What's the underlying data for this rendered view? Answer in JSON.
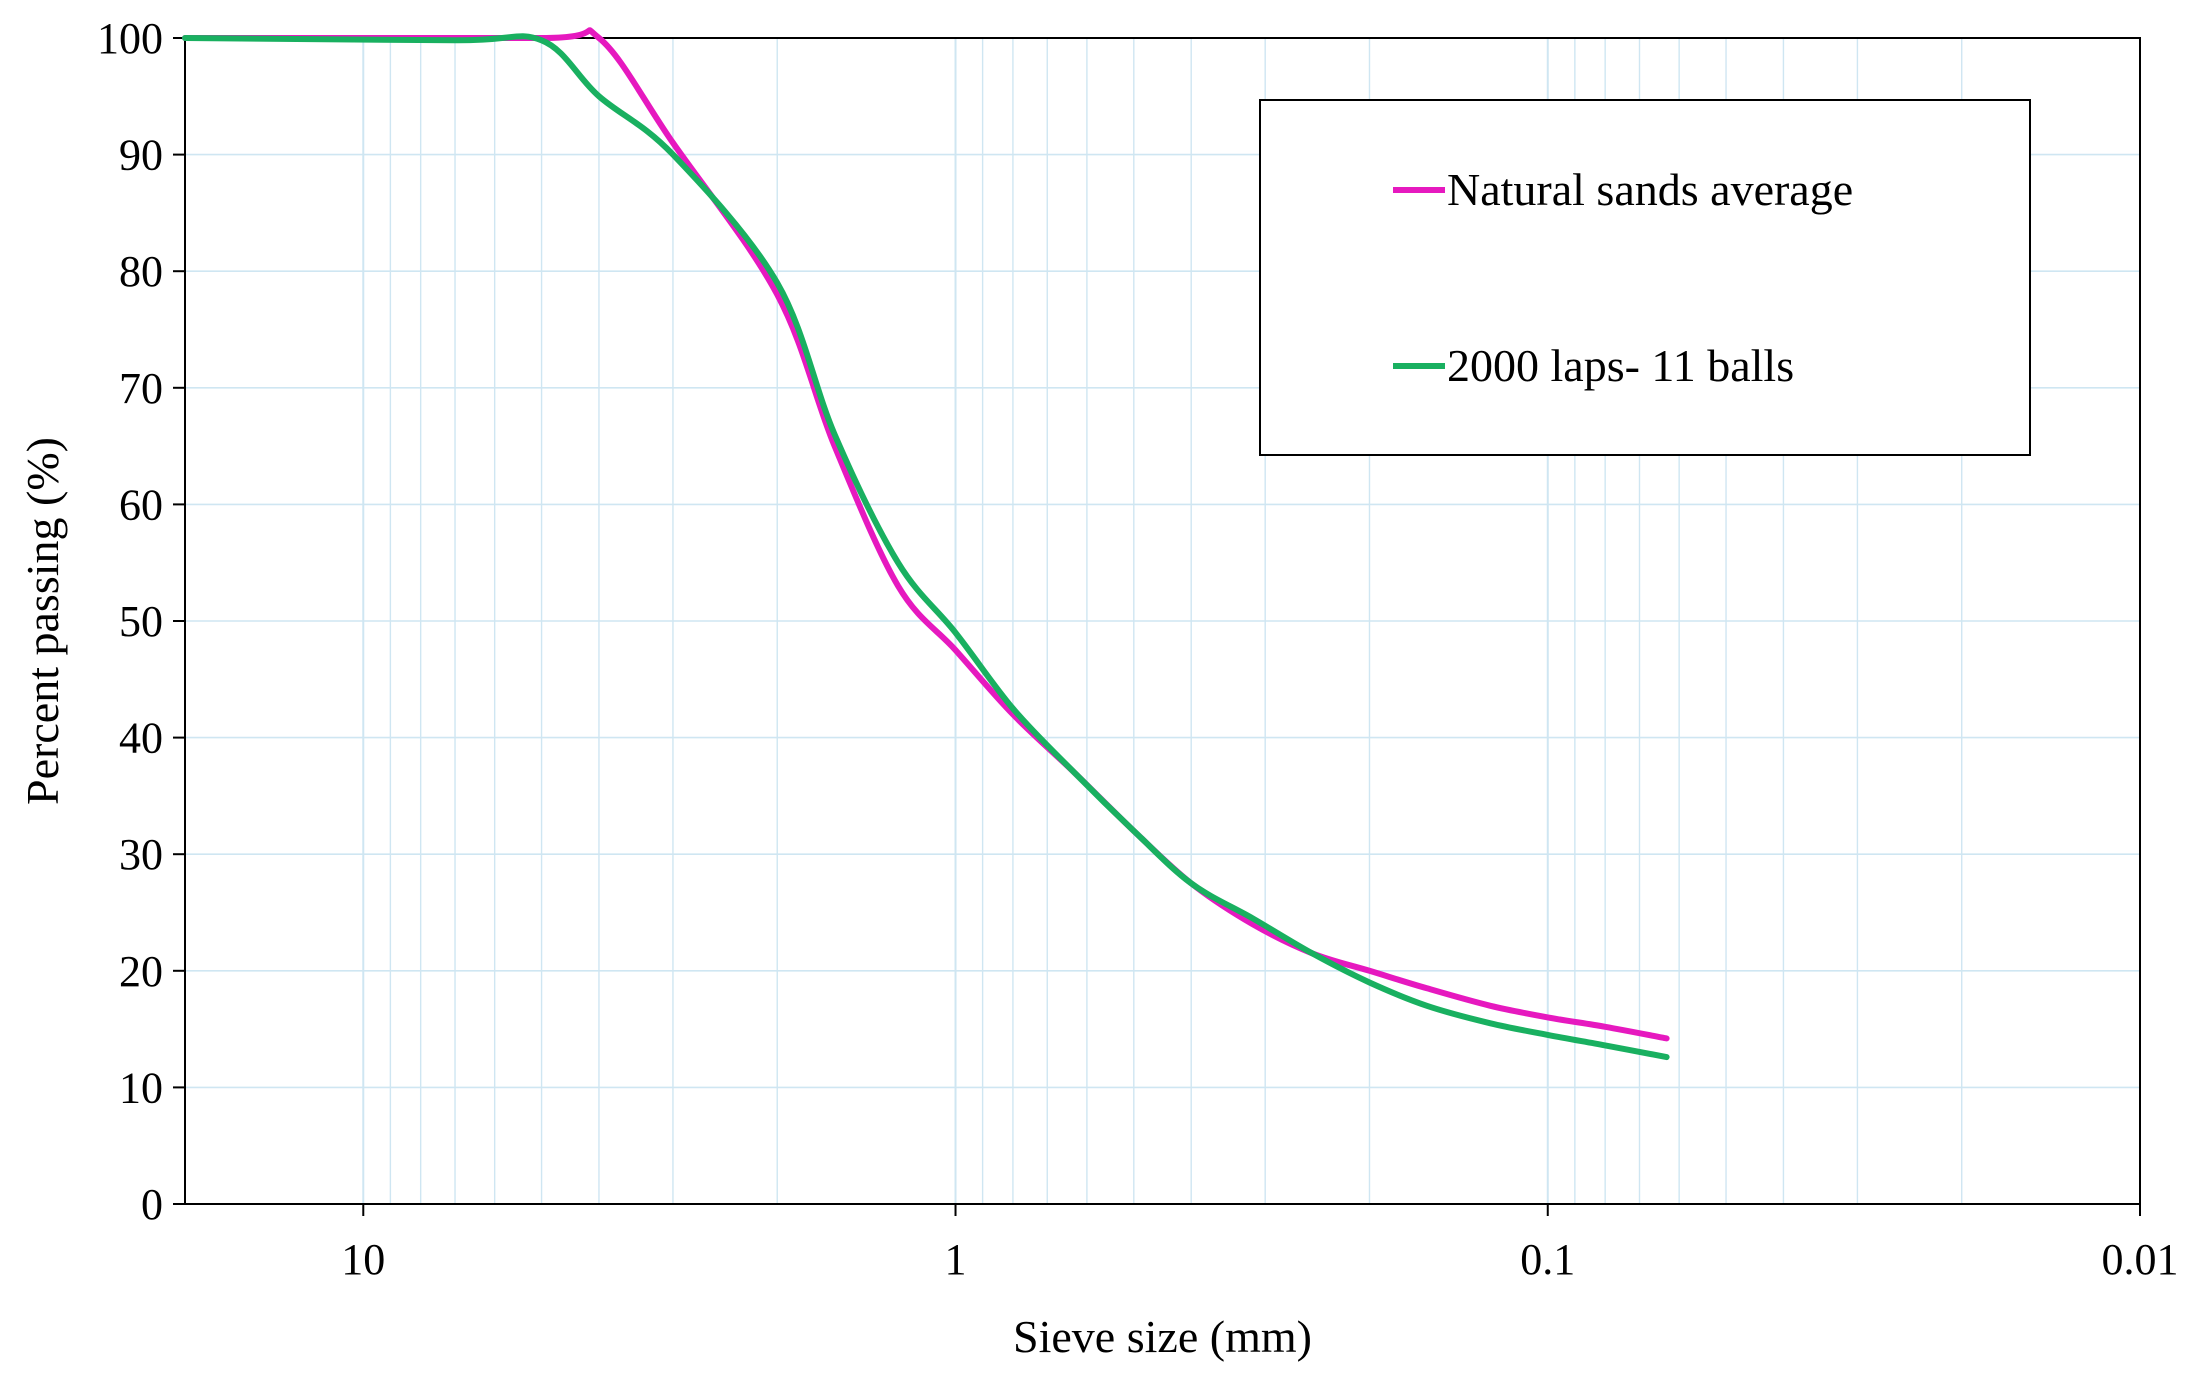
{
  "chart_data": {
    "type": "line",
    "title": "",
    "xlabel": "Sieve size (mm)",
    "ylabel": "Percent passing (%)",
    "x_scale": "log",
    "x_reversed": true,
    "xlim": [
      20,
      0.01
    ],
    "ylim": [
      0,
      100
    ],
    "x_ticks": [
      10,
      1,
      0.1,
      0.01
    ],
    "x_tick_labels": [
      "10",
      "1",
      "0.1",
      "0.01"
    ],
    "y_ticks": [
      0,
      10,
      20,
      30,
      40,
      50,
      60,
      70,
      80,
      90,
      100
    ],
    "y_tick_labels": [
      "0",
      "10",
      "20",
      "30",
      "40",
      "50",
      "60",
      "70",
      "80",
      "90",
      "100"
    ],
    "grid": true,
    "grid_color": "#cfe6f2",
    "legend_position": "top-right",
    "series": [
      {
        "name": "Natural sands average",
        "color": "#e619bf",
        "x": [
          20,
          5,
          4,
          3,
          2,
          1.6,
          1.25,
          1,
          0.8,
          0.63,
          0.5,
          0.4,
          0.315,
          0.25,
          0.2,
          0.16,
          0.125,
          0.1,
          0.08,
          0.063
        ],
        "y": [
          100,
          100,
          100,
          91,
          78,
          65,
          53,
          47.5,
          42,
          37,
          32,
          27.5,
          24,
          21.5,
          20,
          18.5,
          17,
          16,
          15.2,
          14.2
        ]
      },
      {
        "name": "2000 laps- 11 balls",
        "color": "#19b060",
        "x": [
          20,
          7,
          5,
          4,
          3,
          2,
          1.6,
          1.25,
          1,
          0.8,
          0.63,
          0.5,
          0.4,
          0.315,
          0.25,
          0.2,
          0.16,
          0.125,
          0.1,
          0.08,
          0.063
        ],
        "y": [
          100,
          99.8,
          99.8,
          95,
          90,
          79,
          66,
          55,
          49,
          42.5,
          37,
          32,
          27.5,
          24.5,
          21.5,
          19,
          17,
          15.5,
          14.5,
          13.6,
          12.6
        ]
      }
    ]
  }
}
